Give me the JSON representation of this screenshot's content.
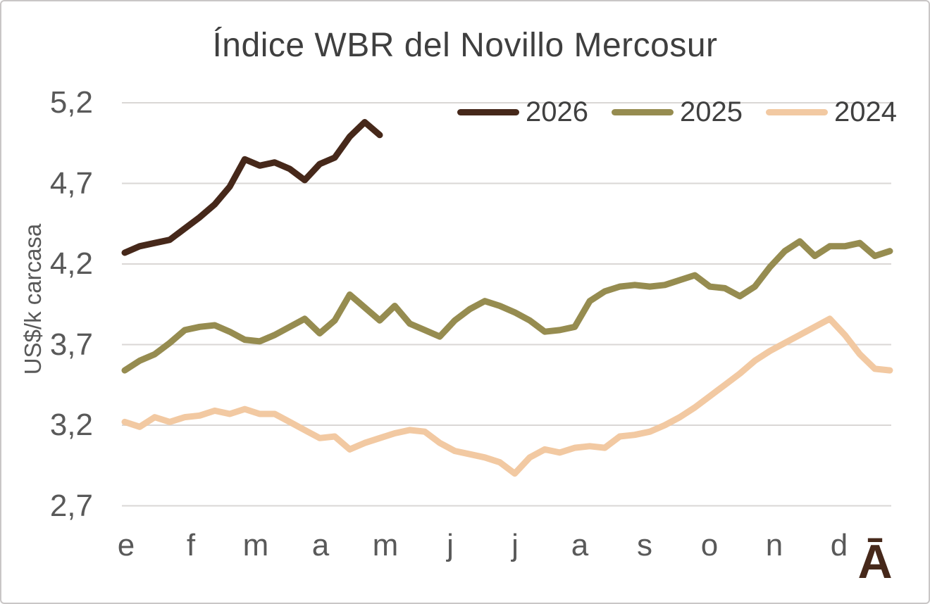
{
  "watermark": {
    "glyph": "Ā",
    "color": "#46281a"
  },
  "colors": {
    "background": "#ffffff",
    "border": "#c9c6c6",
    "title_text": "#3f3f3f",
    "axis_text": "#595959",
    "legend_text": "#404040",
    "gridline": "#dad7d5"
  },
  "chart_data": {
    "type": "line",
    "title": "Índice WBR del Novillo Mercosur",
    "xlabel": "",
    "ylabel": "US$/k carcasa",
    "x_unit": "week",
    "weeks_per_year": 52,
    "x_tick_labels": [
      "e",
      "f",
      "m",
      "a",
      "m",
      "j",
      "j",
      "a",
      "s",
      "o",
      "n",
      "d"
    ],
    "y_tick_labels": [
      "2,7",
      "3,2",
      "3,7",
      "4,2",
      "4,7",
      "5,2"
    ],
    "ylim": [
      2.7,
      5.2
    ],
    "y_step": 0.5,
    "grid": "horizontal",
    "legend_position": "top-right",
    "series": [
      {
        "name": "2026",
        "color": "#46281a",
        "values": [
          4.27,
          4.31,
          4.33,
          4.35,
          4.42,
          4.49,
          4.57,
          4.68,
          4.85,
          4.81,
          4.83,
          4.79,
          4.72,
          4.82,
          4.86,
          4.99,
          5.08,
          5.0
        ]
      },
      {
        "name": "2025",
        "color": "#968c50",
        "values": [
          3.54,
          3.6,
          3.64,
          3.71,
          3.79,
          3.81,
          3.82,
          3.78,
          3.73,
          3.72,
          3.76,
          3.81,
          3.86,
          3.77,
          3.85,
          4.01,
          3.93,
          3.85,
          3.94,
          3.83,
          3.79,
          3.75,
          3.85,
          3.92,
          3.97,
          3.94,
          3.9,
          3.85,
          3.78,
          3.79,
          3.81,
          3.97,
          4.03,
          4.06,
          4.07,
          4.06,
          4.07,
          4.1,
          4.13,
          4.06,
          4.05,
          4.0,
          4.06,
          4.18,
          4.28,
          4.34,
          4.25,
          4.31,
          4.31,
          4.33,
          4.25,
          4.28
        ]
      },
      {
        "name": "2024",
        "color": "#f2c9a2",
        "values": [
          3.22,
          3.19,
          3.25,
          3.22,
          3.25,
          3.26,
          3.29,
          3.27,
          3.3,
          3.27,
          3.27,
          3.22,
          3.17,
          3.12,
          3.13,
          3.05,
          3.09,
          3.12,
          3.15,
          3.17,
          3.16,
          3.09,
          3.04,
          3.02,
          3.0,
          2.97,
          2.9,
          3.0,
          3.05,
          3.03,
          3.06,
          3.07,
          3.06,
          3.13,
          3.14,
          3.16,
          3.2,
          3.25,
          3.31,
          3.38,
          3.45,
          3.52,
          3.6,
          3.66,
          3.71,
          3.76,
          3.81,
          3.86,
          3.76,
          3.64,
          3.55,
          3.54
        ]
      }
    ]
  }
}
